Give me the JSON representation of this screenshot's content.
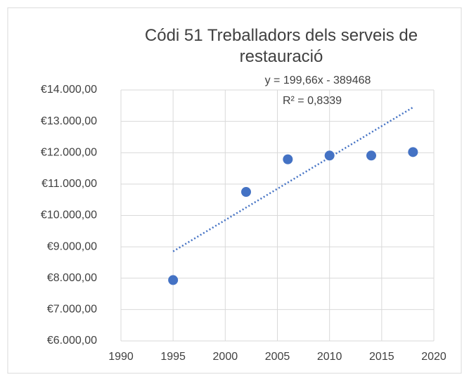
{
  "chart_data": {
    "type": "scatter",
    "title": "Códi 51 Treballadors dels serveis de restauració",
    "x": [
      1995,
      2002,
      2006,
      2010,
      2014,
      2018
    ],
    "values": [
      7940,
      10750,
      11790,
      11910,
      11910,
      12020
    ],
    "color": "#4472c4",
    "xlim": [
      1990,
      2020
    ],
    "xticks": [
      1990,
      1995,
      2000,
      2005,
      2010,
      2015,
      2020
    ],
    "ylim": [
      6000,
      14000
    ],
    "yticks": [
      {
        "value": 6000,
        "label": "€6.000,00"
      },
      {
        "value": 7000,
        "label": "€7.000,00"
      },
      {
        "value": 8000,
        "label": "€8.000,00"
      },
      {
        "value": 9000,
        "label": "€9.000,00"
      },
      {
        "value": 10000,
        "label": "€10.000,00"
      },
      {
        "value": 11000,
        "label": "€11.000,00"
      },
      {
        "value": 12000,
        "label": "€12.000,00"
      },
      {
        "value": 13000,
        "label": "€13.000,00"
      },
      {
        "value": 14000,
        "label": "€14.000,00"
      }
    ],
    "grid": true,
    "trendline": {
      "equation": "y = 199,66x - 389468",
      "r_squared": "R² = 0,8339",
      "slope": 199.66,
      "intercept": -389468,
      "color": "#4472c4"
    }
  }
}
